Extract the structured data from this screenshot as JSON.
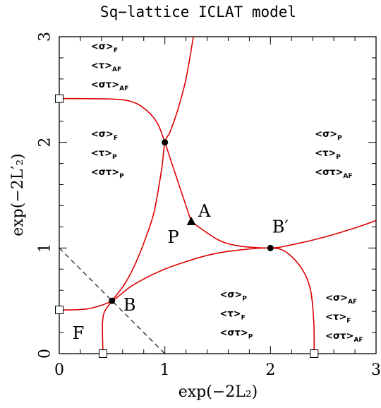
{
  "chart_data": {
    "type": "line",
    "title": "Sq−lattice ICLAT model",
    "xlabel": "exp(−2L₂)",
    "ylabel": "exp(−2L′₂)",
    "xlim": [
      0,
      3
    ],
    "ylim": [
      0,
      3
    ],
    "xticks": [
      {
        "value": 0,
        "label": "0"
      },
      {
        "value": 1,
        "label": "1"
      },
      {
        "value": 2,
        "label": "2"
      },
      {
        "value": 3,
        "label": "3"
      }
    ],
    "yticks": [
      {
        "value": 0,
        "label": "0"
      },
      {
        "value": 1,
        "label": "1"
      },
      {
        "value": 2,
        "label": "2"
      },
      {
        "value": 3,
        "label": "3"
      }
    ],
    "minor_tick_step": 0.2,
    "line_color": "#dd0000",
    "series": [
      {
        "style": "solid",
        "color": "#dd0000",
        "points": [
          [
            1.27,
            3.0
          ],
          [
            1.2,
            2.6
          ],
          [
            1.12,
            2.3
          ],
          [
            1.05,
            2.1
          ],
          [
            1.0,
            2.0
          ],
          [
            0.97,
            1.75
          ],
          [
            0.9,
            1.35
          ],
          [
            0.82,
            1.1
          ],
          [
            0.72,
            0.85
          ],
          [
            0.62,
            0.66
          ],
          [
            0.5,
            0.5
          ],
          [
            0.43,
            0.4
          ],
          [
            0.41,
            0.3
          ],
          [
            0.41,
            0.15
          ],
          [
            0.414,
            0.0
          ]
        ]
      },
      {
        "style": "solid",
        "color": "#dd0000",
        "points": [
          [
            0.0,
            2.414
          ],
          [
            0.5,
            2.41
          ],
          [
            0.7,
            2.38
          ],
          [
            0.83,
            2.3
          ],
          [
            0.93,
            2.18
          ],
          [
            1.0,
            2.0
          ],
          [
            1.05,
            1.85
          ],
          [
            1.15,
            1.55
          ],
          [
            1.25,
            1.25
          ]
        ]
      },
      {
        "style": "solid",
        "color": "#dd0000",
        "points": [
          [
            1.25,
            1.25
          ],
          [
            1.5,
            1.08
          ],
          [
            1.7,
            1.02
          ],
          [
            2.0,
            1.0
          ],
          [
            2.2,
            1.03
          ],
          [
            2.5,
            1.1
          ],
          [
            2.8,
            1.19
          ],
          [
            3.0,
            1.26
          ]
        ]
      },
      {
        "style": "solid",
        "color": "#dd0000",
        "points": [
          [
            0.0,
            0.414
          ],
          [
            0.15,
            0.415
          ],
          [
            0.3,
            0.43
          ],
          [
            0.5,
            0.5
          ],
          [
            0.7,
            0.65
          ],
          [
            1.0,
            0.8
          ],
          [
            1.4,
            0.93
          ],
          [
            1.7,
            0.98
          ],
          [
            2.0,
            1.0
          ],
          [
            2.15,
            0.96
          ],
          [
            2.3,
            0.8
          ],
          [
            2.38,
            0.6
          ],
          [
            2.41,
            0.3
          ],
          [
            2.414,
            0.0
          ]
        ]
      },
      {
        "style": "dashed",
        "color": "#000000",
        "points": [
          [
            0.0,
            1.0
          ],
          [
            1.0,
            0.0
          ]
        ]
      }
    ],
    "points": [
      {
        "label": "",
        "x": 1.0,
        "y": 2.0,
        "marker": "circle"
      },
      {
        "label": "A",
        "x": 1.25,
        "y": 1.25,
        "marker": "triangle"
      },
      {
        "label": "B′",
        "x": 2.0,
        "y": 1.0,
        "marker": "circle"
      },
      {
        "label": "B",
        "x": 0.5,
        "y": 0.5,
        "marker": "circle"
      },
      {
        "label": "",
        "x": 0.0,
        "y": 2.414,
        "marker": "open-square"
      },
      {
        "label": "",
        "x": 0.0,
        "y": 0.414,
        "marker": "open-square"
      },
      {
        "label": "",
        "x": 0.414,
        "y": 0.0,
        "marker": "open-square"
      },
      {
        "label": "",
        "x": 2.414,
        "y": 0.0,
        "marker": "open-square"
      }
    ],
    "phase_labels": [
      {
        "text": "P",
        "x": 1.08,
        "y": 1.05
      },
      {
        "text": "F",
        "x": 0.18,
        "y": 0.14
      }
    ],
    "order_parameters": [
      {
        "x": 0.3,
        "y": [
          2.88,
          2.7,
          2.52
        ],
        "lines": [
          [
            "<σ>",
            "F"
          ],
          [
            "<τ>",
            "AF"
          ],
          [
            "<στ>",
            "AF"
          ]
        ]
      },
      {
        "x": 0.3,
        "y": [
          2.05,
          1.87,
          1.69
        ],
        "lines": [
          [
            "<σ>",
            "F"
          ],
          [
            "<τ>",
            "P"
          ],
          [
            "<στ>",
            "P"
          ]
        ]
      },
      {
        "x": 2.42,
        "y": [
          2.05,
          1.87,
          1.69
        ],
        "lines": [
          [
            "<σ>",
            "P"
          ],
          [
            "<τ>",
            "P"
          ],
          [
            "<στ>",
            "AF"
          ]
        ]
      },
      {
        "x": 1.52,
        "y": [
          0.53,
          0.35,
          0.17
        ],
        "lines": [
          [
            "<σ>",
            "P"
          ],
          [
            "<τ>",
            "F"
          ],
          [
            "<στ>",
            "P"
          ]
        ]
      },
      {
        "x": 2.52,
        "y": [
          0.5,
          0.32,
          0.14
        ],
        "lines": [
          [
            "<σ>",
            "AF"
          ],
          [
            "<τ>",
            "F"
          ],
          [
            "<στ>",
            "AF"
          ]
        ]
      }
    ]
  }
}
